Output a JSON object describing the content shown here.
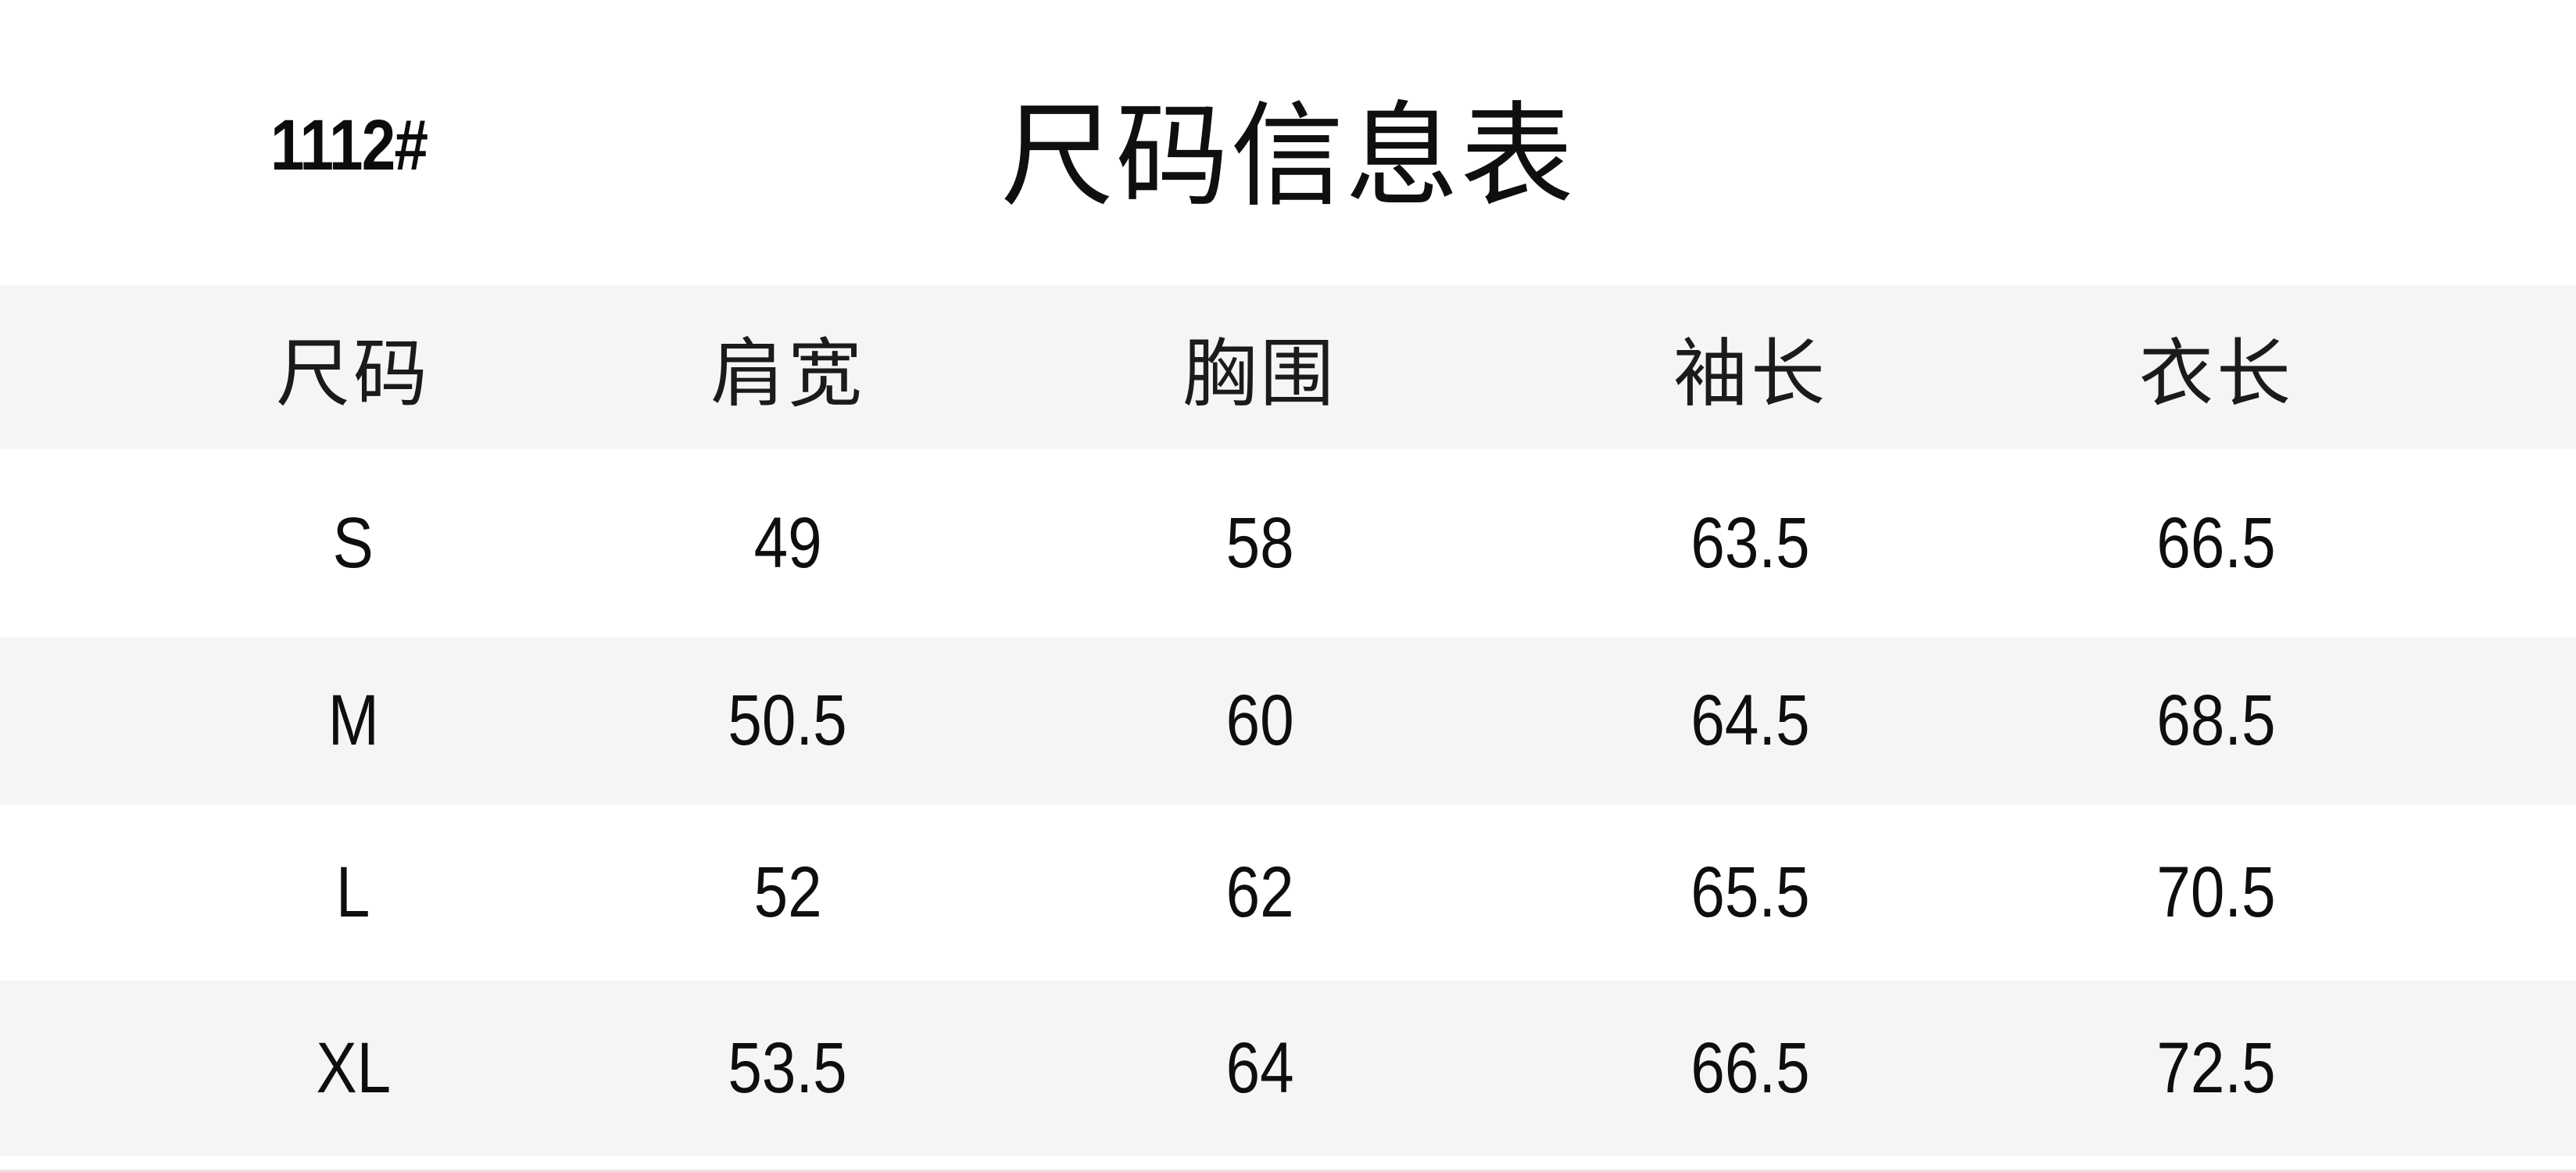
{
  "header": {
    "product_code": "1112#",
    "title": "尺码信息表"
  },
  "chart_data": {
    "type": "table",
    "title": "尺码信息表",
    "product_code": "1112#",
    "columns": [
      "尺码",
      "肩宽",
      "胸围",
      "袖长",
      "衣长"
    ],
    "rows": [
      [
        "S",
        "49",
        "58",
        "63.5",
        "66.5"
      ],
      [
        "M",
        "50.5",
        "60",
        "64.5",
        "68.5"
      ],
      [
        "L",
        "52",
        "62",
        "65.5",
        "70.5"
      ],
      [
        "XL",
        "53.5",
        "64",
        "66.5",
        "72.5"
      ]
    ],
    "layout_hints": {
      "banding": "alternating light-gray bands on header, M and XL rows",
      "alignment": "all cells center-aligned in 5 columns"
    }
  },
  "colors": {
    "background": "#ffffff",
    "band_gray": "#f6f5f3",
    "text": "#0e0e0e",
    "bottom_hairline": "#e6e4e1"
  }
}
